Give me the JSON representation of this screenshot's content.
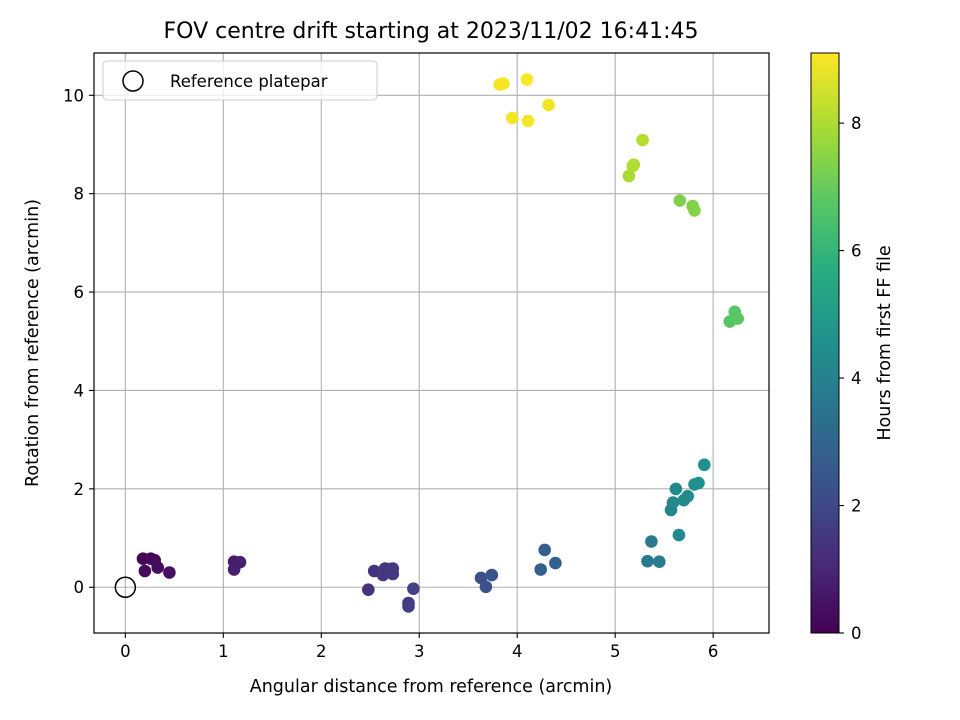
{
  "chart_data": {
    "type": "scatter",
    "title": "FOV centre drift starting at 2023/11/02 16:41:45",
    "xlabel": "Angular distance from reference (arcmin)",
    "ylabel": "Rotation from reference (arcmin)",
    "xlim": [
      -0.32,
      6.57
    ],
    "ylim": [
      -0.93,
      10.86
    ],
    "xticks": [
      0,
      1,
      2,
      3,
      4,
      5,
      6
    ],
    "yticks": [
      0,
      2,
      4,
      6,
      8,
      10
    ],
    "grid": true,
    "legend": {
      "placement": "top-left",
      "entries": [
        "Reference platepar"
      ]
    },
    "reference_point": {
      "name": "Reference platepar",
      "x": 0,
      "y": 0
    },
    "colorbar": {
      "label": "Hours from first FF file",
      "range": [
        0,
        9.1
      ],
      "ticks": [
        0,
        2,
        4,
        6,
        8
      ],
      "colormap": "viridis"
    },
    "points": [
      {
        "x": 0.18,
        "y": 0.58,
        "c": 0.1
      },
      {
        "x": 0.26,
        "y": 0.58,
        "c": 0.15
      },
      {
        "x": 0.3,
        "y": 0.55,
        "c": 0.2
      },
      {
        "x": 0.2,
        "y": 0.33,
        "c": 0.25
      },
      {
        "x": 0.33,
        "y": 0.4,
        "c": 0.3
      },
      {
        "x": 0.45,
        "y": 0.3,
        "c": 0.4
      },
      {
        "x": 1.11,
        "y": 0.52,
        "c": 0.75
      },
      {
        "x": 1.17,
        "y": 0.51,
        "c": 0.8
      },
      {
        "x": 1.11,
        "y": 0.36,
        "c": 0.85
      },
      {
        "x": 2.48,
        "y": -0.05,
        "c": 1.3
      },
      {
        "x": 2.54,
        "y": 0.33,
        "c": 1.35
      },
      {
        "x": 2.62,
        "y": 0.3,
        "c": 1.4
      },
      {
        "x": 2.65,
        "y": 0.38,
        "c": 1.45
      },
      {
        "x": 2.63,
        "y": 0.25,
        "c": 1.45
      },
      {
        "x": 2.7,
        "y": 0.37,
        "c": 1.5
      },
      {
        "x": 2.73,
        "y": 0.38,
        "c": 1.55
      },
      {
        "x": 2.73,
        "y": 0.27,
        "c": 1.55
      },
      {
        "x": 2.89,
        "y": -0.32,
        "c": 1.65
      },
      {
        "x": 2.89,
        "y": -0.39,
        "c": 1.7
      },
      {
        "x": 2.94,
        "y": -0.03,
        "c": 1.75
      },
      {
        "x": 3.63,
        "y": 0.19,
        "c": 2.25
      },
      {
        "x": 3.68,
        "y": 0.01,
        "c": 2.3
      },
      {
        "x": 3.74,
        "y": 0.25,
        "c": 2.35
      },
      {
        "x": 4.28,
        "y": 0.76,
        "c": 2.75
      },
      {
        "x": 4.24,
        "y": 0.36,
        "c": 2.8
      },
      {
        "x": 4.39,
        "y": 0.49,
        "c": 2.85
      },
      {
        "x": 5.33,
        "y": 0.53,
        "c": 3.7
      },
      {
        "x": 5.37,
        "y": 0.93,
        "c": 3.75
      },
      {
        "x": 5.45,
        "y": 0.52,
        "c": 3.8
      },
      {
        "x": 5.57,
        "y": 1.57,
        "c": 4.2
      },
      {
        "x": 5.59,
        "y": 1.72,
        "c": 4.25
      },
      {
        "x": 5.62,
        "y": 2.0,
        "c": 4.3
      },
      {
        "x": 5.65,
        "y": 1.06,
        "c": 4.3
      },
      {
        "x": 5.7,
        "y": 1.77,
        "c": 4.35
      },
      {
        "x": 5.74,
        "y": 1.85,
        "c": 4.4
      },
      {
        "x": 5.81,
        "y": 2.09,
        "c": 4.45
      },
      {
        "x": 5.85,
        "y": 2.12,
        "c": 4.5
      },
      {
        "x": 5.91,
        "y": 2.49,
        "c": 4.6
      },
      {
        "x": 6.17,
        "y": 5.4,
        "c": 6.7
      },
      {
        "x": 6.22,
        "y": 5.6,
        "c": 6.75
      },
      {
        "x": 6.25,
        "y": 5.46,
        "c": 6.8
      },
      {
        "x": 5.66,
        "y": 7.86,
        "c": 7.3
      },
      {
        "x": 5.79,
        "y": 7.75,
        "c": 7.35
      },
      {
        "x": 5.81,
        "y": 7.66,
        "c": 7.4
      },
      {
        "x": 5.14,
        "y": 8.36,
        "c": 7.95
      },
      {
        "x": 5.18,
        "y": 8.56,
        "c": 8.0
      },
      {
        "x": 5.19,
        "y": 8.59,
        "c": 8.05
      },
      {
        "x": 5.28,
        "y": 9.09,
        "c": 8.1
      },
      {
        "x": 3.82,
        "y": 10.22,
        "c": 9.0
      },
      {
        "x": 3.86,
        "y": 10.24,
        "c": 9.0
      },
      {
        "x": 3.95,
        "y": 9.54,
        "c": 8.95
      },
      {
        "x": 4.1,
        "y": 10.32,
        "c": 9.05
      },
      {
        "x": 4.11,
        "y": 9.48,
        "c": 8.95
      },
      {
        "x": 4.32,
        "y": 9.8,
        "c": 8.9
      }
    ]
  }
}
